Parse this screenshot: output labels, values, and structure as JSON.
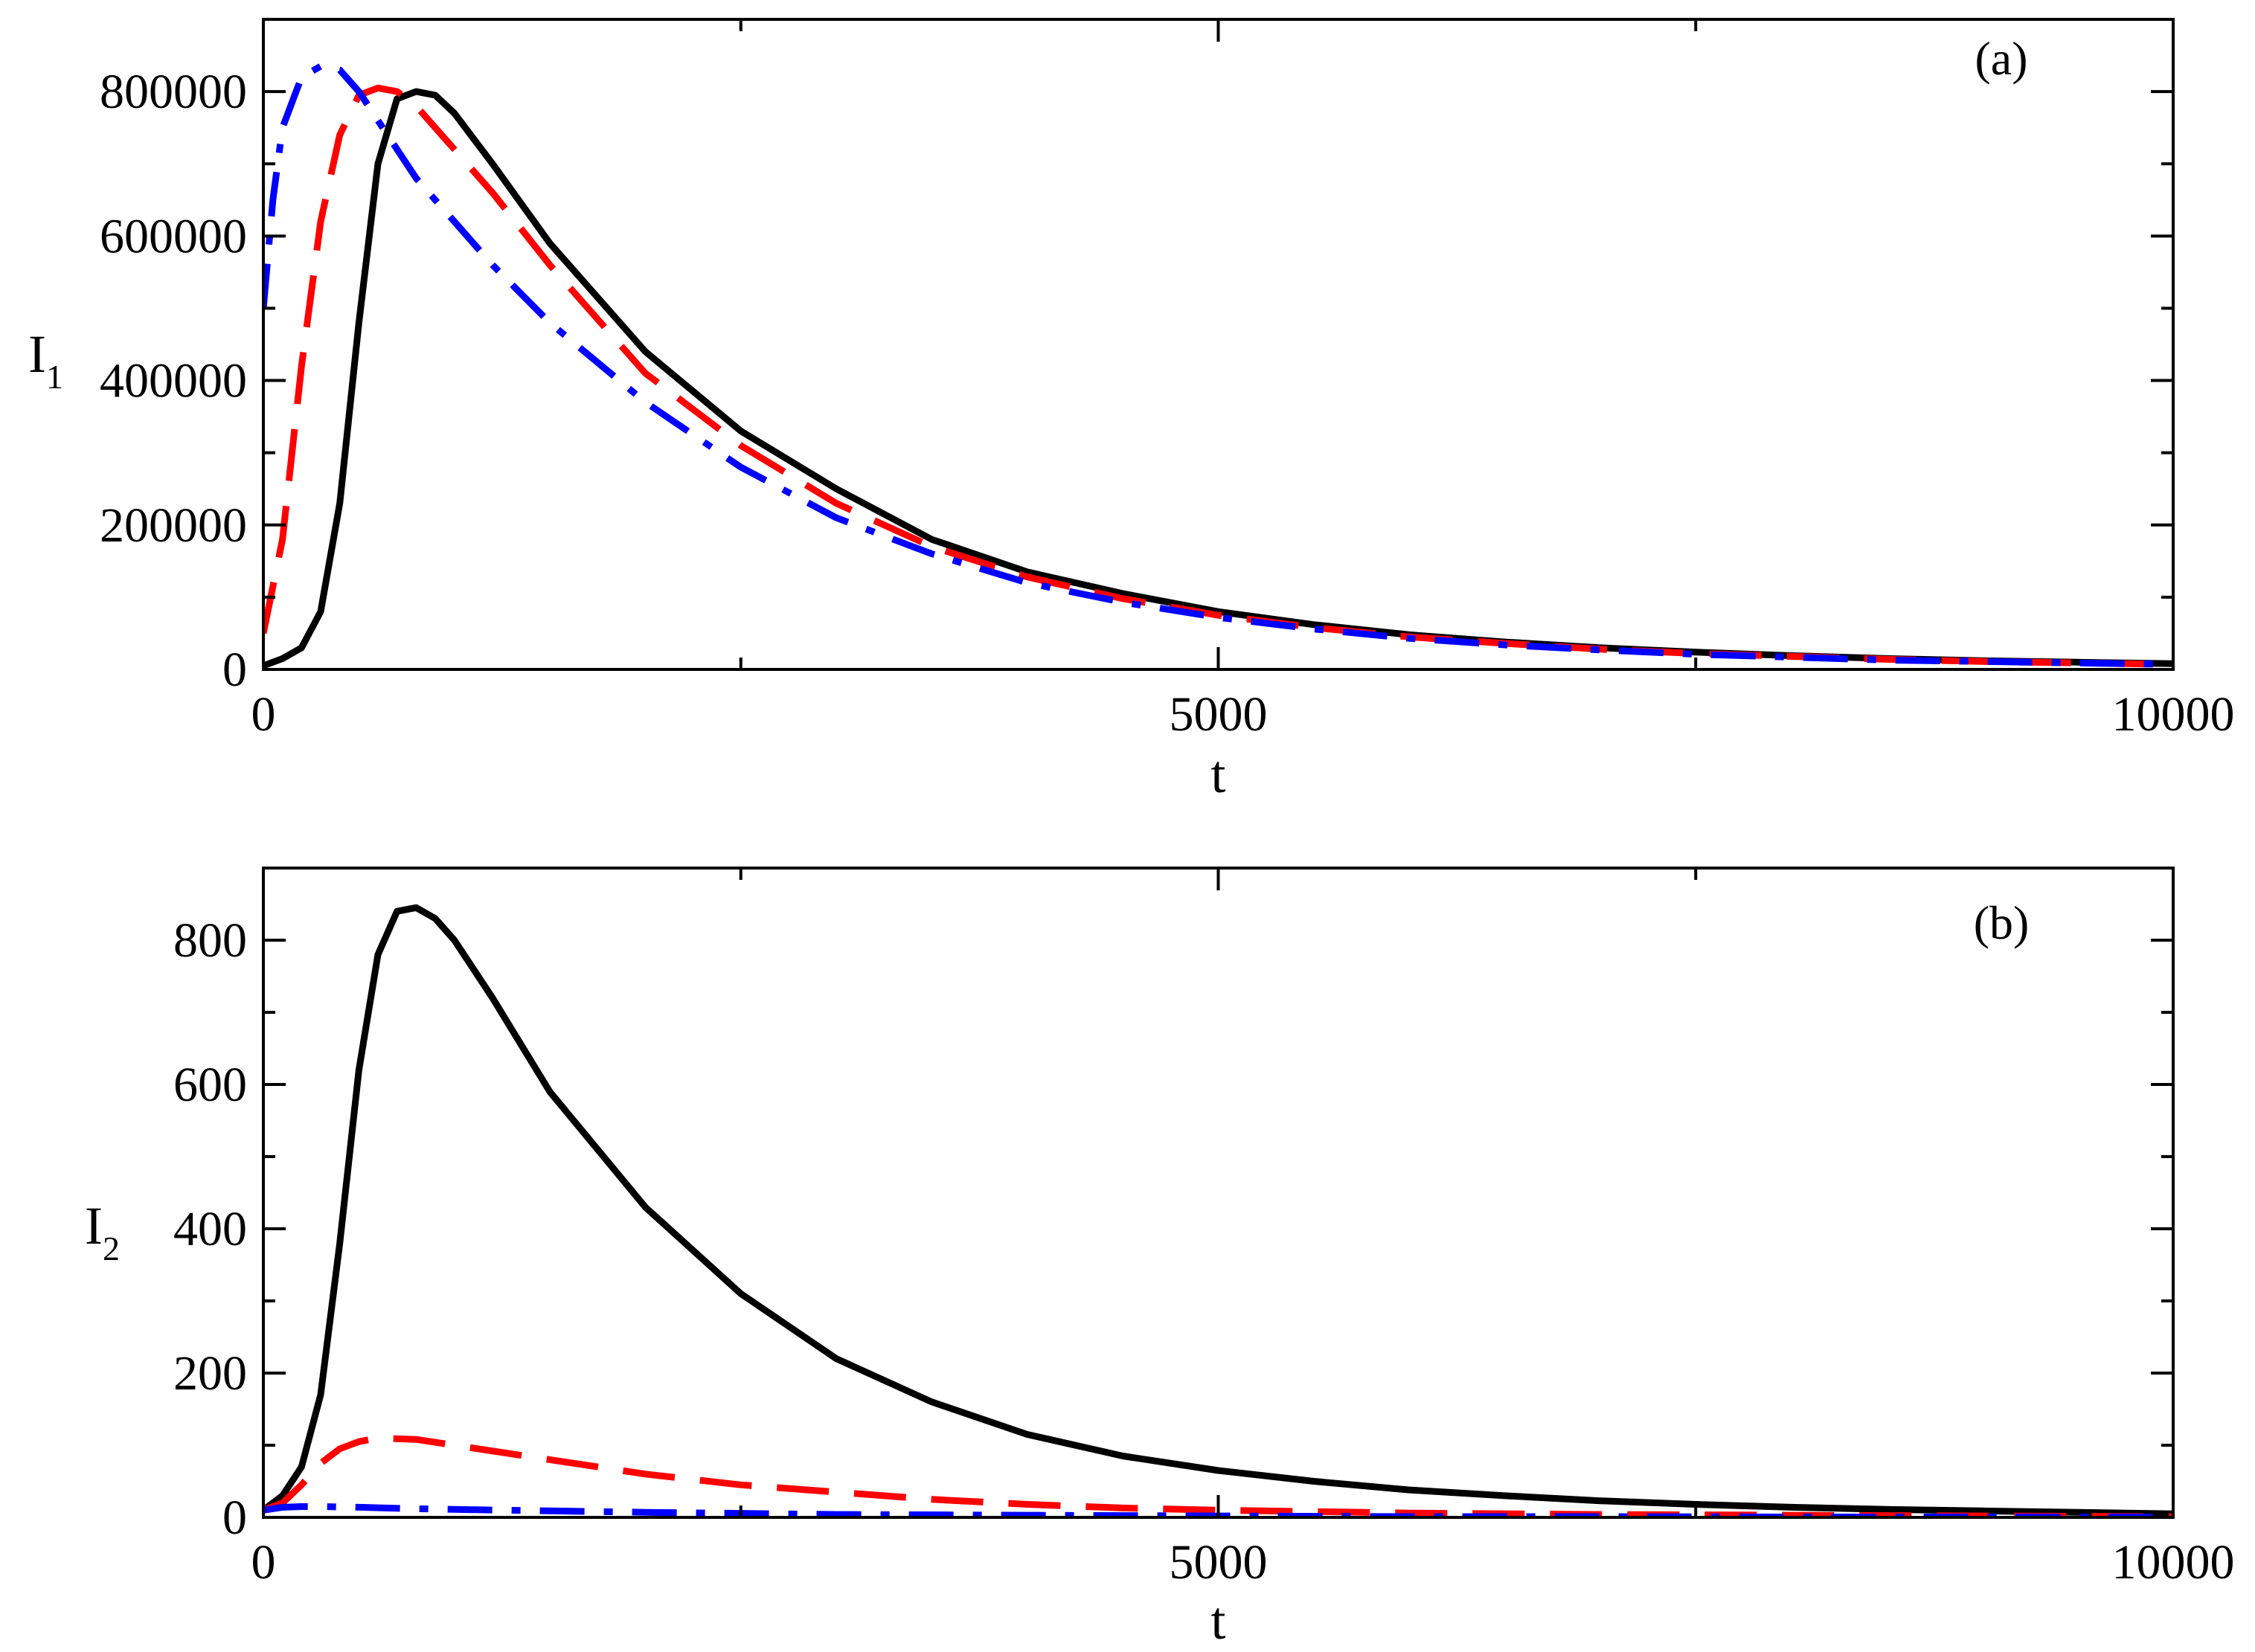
{
  "chart_data": [
    {
      "type": "line",
      "panel_label": "(a)",
      "xlabel": "t",
      "ylabel": "I",
      "ylabel_sub": "1",
      "xlim": [
        0,
        10000
      ],
      "ylim": [
        0,
        900000
      ],
      "x_ticks": [
        0,
        5000,
        10000
      ],
      "x_tick_labels": [
        "0",
        "5000",
        "10000"
      ],
      "y_ticks": [
        0,
        200000,
        400000,
        600000,
        800000
      ],
      "y_tick_labels": [
        "0",
        "200000",
        "400000",
        "600000",
        "800000"
      ],
      "grid": false,
      "series": [
        {
          "name": "solid",
          "color": "#000000",
          "style": "solid",
          "x": [
            0,
            100,
            200,
            300,
            400,
            500,
            600,
            700,
            800,
            900,
            1000,
            1200,
            1500,
            2000,
            2500,
            3000,
            3500,
            4000,
            4500,
            5000,
            5500,
            6000,
            6500,
            7000,
            7500,
            8000,
            8500,
            9000,
            9500,
            10000
          ],
          "y": [
            5000,
            15000,
            30000,
            80000,
            230000,
            480000,
            700000,
            790000,
            800000,
            795000,
            770000,
            700000,
            590000,
            440000,
            330000,
            250000,
            180000,
            135000,
            105000,
            80000,
            62000,
            48000,
            38000,
            30000,
            24000,
            19000,
            15000,
            12000,
            10000,
            8000
          ]
        },
        {
          "name": "dashed",
          "color": "#ff0000",
          "style": "dashed",
          "x": [
            0,
            100,
            200,
            300,
            400,
            500,
            600,
            700,
            800,
            900,
            1000,
            1200,
            1500,
            2000,
            2500,
            3000,
            3500,
            4000,
            4500,
            5000,
            5500,
            6000,
            6500,
            7000,
            7500,
            8000,
            8500,
            9000,
            9500,
            10000
          ],
          "y": [
            50000,
            180000,
            420000,
            620000,
            740000,
            795000,
            805000,
            800000,
            780000,
            750000,
            720000,
            660000,
            560000,
            410000,
            310000,
            230000,
            170000,
            128000,
            98000,
            75000,
            58000,
            45000,
            36000,
            28000,
            22000,
            18000,
            14000,
            11000,
            9000,
            7000
          ]
        },
        {
          "name": "dash-dot",
          "color": "#0000ff",
          "style": "dashdot",
          "x": [
            0,
            50,
            100,
            200,
            300,
            400,
            500,
            600,
            700,
            800,
            900,
            1000,
            1200,
            1500,
            2000,
            2500,
            3000,
            3500,
            4000,
            4500,
            5000,
            5500,
            6000,
            6500,
            7000,
            7500,
            8000,
            8500,
            9000,
            9500,
            10000
          ],
          "y": [
            500000,
            650000,
            750000,
            820000,
            835000,
            830000,
            800000,
            760000,
            720000,
            680000,
            650000,
            620000,
            560000,
            480000,
            370000,
            280000,
            210000,
            160000,
            120000,
            93000,
            72000,
            56000,
            43000,
            34000,
            27000,
            21000,
            17000,
            13000,
            11000,
            9000,
            7000
          ]
        }
      ]
    },
    {
      "type": "line",
      "panel_label": "(b)",
      "xlabel": "t",
      "ylabel": "I",
      "ylabel_sub": "2",
      "xlim": [
        0,
        10000
      ],
      "ylim": [
        0,
        900
      ],
      "x_ticks": [
        0,
        5000,
        10000
      ],
      "x_tick_labels": [
        "0",
        "5000",
        "10000"
      ],
      "y_ticks": [
        0,
        200,
        400,
        600,
        800
      ],
      "y_tick_labels": [
        "0",
        "200",
        "400",
        "600",
        "800"
      ],
      "grid": false,
      "series": [
        {
          "name": "solid",
          "color": "#000000",
          "style": "solid",
          "x": [
            0,
            100,
            200,
            300,
            400,
            500,
            600,
            700,
            800,
            900,
            1000,
            1200,
            1500,
            2000,
            2500,
            3000,
            3500,
            4000,
            4500,
            5000,
            5500,
            6000,
            6500,
            7000,
            7500,
            8000,
            8500,
            9000,
            9500,
            10000
          ],
          "y": [
            10,
            30,
            70,
            170,
            380,
            620,
            780,
            840,
            845,
            830,
            800,
            720,
            590,
            430,
            310,
            220,
            160,
            115,
            85,
            65,
            50,
            38,
            30,
            23,
            18,
            14,
            11,
            9,
            7,
            5
          ]
        },
        {
          "name": "dashed",
          "color": "#ff0000",
          "style": "dashed",
          "x": [
            0,
            100,
            200,
            300,
            400,
            500,
            600,
            800,
            1000,
            1500,
            2000,
            2500,
            3000,
            3500,
            4000,
            4500,
            5000,
            6000,
            7000,
            8000,
            9000,
            10000
          ],
          "y": [
            10,
            20,
            45,
            75,
            95,
            105,
            110,
            108,
            100,
            80,
            60,
            45,
            35,
            25,
            18,
            13,
            10,
            6,
            4,
            3,
            2,
            1
          ]
        },
        {
          "name": "dash-dot",
          "color": "#0000ff",
          "style": "dashdot",
          "x": [
            0,
            100,
            200,
            300,
            500,
            800,
            1000,
            1500,
            2000,
            3000,
            4000,
            5000,
            6000,
            7000,
            8000,
            9000,
            10000
          ],
          "y": [
            10,
            14,
            15,
            15,
            14,
            12,
            11,
            9,
            7,
            4,
            3,
            2,
            1,
            1,
            0.5,
            0.5,
            0.3
          ]
        }
      ]
    }
  ]
}
